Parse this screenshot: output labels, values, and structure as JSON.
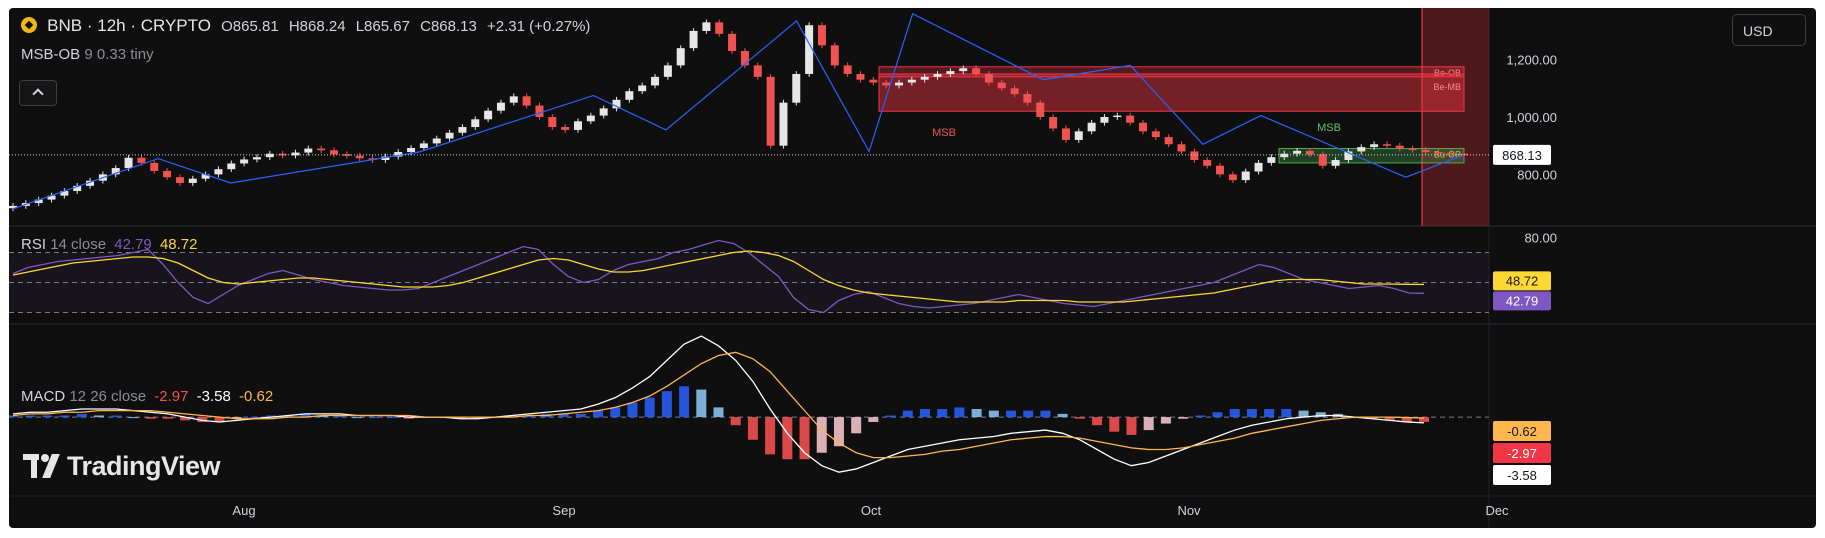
{
  "header": {
    "title": "BNB · 12h · CRYPTO",
    "ohlc": {
      "open": "O865.81",
      "high": "H868.24",
      "low": "L865.67",
      "close": "C868.13",
      "change": "+2.31 (+0.27%)"
    },
    "indicator_name": "MSB-OB",
    "indicator_params": "9 0.33 tiny"
  },
  "currency_button": "USD",
  "rsi_legend": {
    "name": "RSI",
    "params": "14 close",
    "v1": "42.79",
    "v2": "48.72"
  },
  "macd_legend": {
    "name": "MACD",
    "params": "12 26 close",
    "v1": "-2.97",
    "v2": "-3.58",
    "v3": "-0.62"
  },
  "watermark": "TradingView",
  "colors": {
    "background": "#0f0f0f",
    "up": "#e6e6e6",
    "down": "#ef5350",
    "zigzag": "#2962ff",
    "rsi": "#7e57c2",
    "rsi_ma": "#fdd835",
    "macd": "#ffffff",
    "signal": "#ffb74d",
    "bearish_ob": "#f23645",
    "bullish_ob": "#4caf50"
  },
  "chart_data": [
    {
      "type": "candlestick",
      "title": "BNB · 12h · CRYPTO",
      "x_ticks": [
        "Aug",
        "Sep",
        "Oct",
        "Nov",
        "Dec"
      ],
      "y_ticks": [
        "1,200.00",
        "1,000.00",
        "800.00"
      ],
      "ylim": [
        620,
        1380
      ],
      "last_price": 868.13,
      "last_price_label": "868.13",
      "close_series": [
        690,
        700,
        712,
        726,
        742,
        760,
        778,
        800,
        822,
        858,
        840,
        812,
        790,
        770,
        785,
        800,
        818,
        838,
        852,
        860,
        872,
        866,
        876,
        890,
        884,
        870,
        865,
        856,
        850,
        862,
        878,
        892,
        908,
        925,
        945,
        965,
        992,
        1022,
        1050,
        1072,
        1040,
        1000,
        965,
        955,
        985,
        1005,
        1030,
        1060,
        1090,
        1110,
        1140,
        1180,
        1240,
        1300,
        1330,
        1290,
        1230,
        1180,
        1140,
        900,
        1050,
        1150,
        1320,
        1250,
        1180,
        1150,
        1130,
        1120,
        1110,
        1120,
        1130,
        1140,
        1150,
        1160,
        1170,
        1150,
        1120,
        1100,
        1080,
        1050,
        1000,
        960,
        920,
        950,
        980,
        1000,
        1005,
        980,
        950,
        930,
        905,
        880,
        850,
        830,
        800,
        780,
        810,
        840,
        860,
        872,
        882,
        870,
        830,
        850,
        880,
        895,
        905,
        900,
        890,
        885,
        878,
        875,
        872,
        868
      ],
      "zigzag": [
        [
          0,
          680
        ],
        [
          10,
          855
        ],
        [
          15,
          770
        ],
        [
          28,
          878
        ],
        [
          40,
          1075
        ],
        [
          45,
          955
        ],
        [
          54,
          1335
        ],
        [
          59,
          880
        ],
        [
          62,
          1360
        ],
        [
          71,
          1130
        ],
        [
          77,
          1180
        ],
        [
          82,
          905
        ],
        [
          86,
          1005
        ],
        [
          96,
          790
        ],
        [
          100,
          868
        ]
      ],
      "zones": [
        {
          "label": "Be-OB",
          "top": 1175,
          "bottom": 1140
        },
        {
          "label": "Be-MB",
          "top": 1150,
          "bottom": 1020
        },
        {
          "label": "Bu-OB",
          "top": 890,
          "bottom": 840
        }
      ],
      "annotations": [
        "MSB",
        "MSB"
      ]
    },
    {
      "type": "line",
      "title": "RSI 14 close",
      "y_ticks": [
        "80.00"
      ],
      "ylim": [
        25,
        85
      ],
      "bands": [
        70,
        50,
        30
      ],
      "series": [
        {
          "name": "RSI",
          "last": 42.79,
          "values": [
            56,
            60,
            62,
            64,
            65,
            66,
            67,
            68,
            70,
            72,
            62,
            50,
            40,
            36,
            42,
            48,
            52,
            56,
            58,
            55,
            52,
            50,
            48,
            47,
            46,
            45,
            45,
            46,
            50,
            54,
            58,
            62,
            66,
            70,
            74,
            72,
            62,
            54,
            50,
            52,
            58,
            62,
            64,
            66,
            70,
            72,
            75,
            78,
            76,
            70,
            62,
            54,
            40,
            32,
            30,
            38,
            42,
            44,
            40,
            36,
            34,
            33,
            34,
            35,
            36,
            38,
            40,
            42,
            40,
            38,
            36,
            35,
            34,
            36,
            38,
            40,
            42,
            44,
            46,
            48,
            50,
            54,
            58,
            62,
            60,
            56,
            52,
            50,
            48,
            46,
            47,
            48,
            46,
            43,
            42.79
          ]
        },
        {
          "name": "RSI MA",
          "last": 48.72,
          "values": [
            55,
            57,
            59,
            61,
            63,
            64,
            65,
            66,
            67,
            67,
            66,
            63,
            58,
            53,
            50,
            49,
            50,
            51,
            52,
            53,
            53,
            52,
            51,
            50,
            49,
            48,
            47,
            47,
            47,
            48,
            50,
            53,
            56,
            59,
            62,
            65,
            66,
            65,
            62,
            59,
            57,
            57,
            58,
            60,
            62,
            64,
            66,
            68,
            70,
            71,
            70,
            68,
            64,
            58,
            52,
            48,
            45,
            43,
            42,
            41,
            40,
            39,
            38,
            37,
            37,
            37,
            37,
            38,
            38,
            38,
            38,
            37,
            37,
            37,
            37,
            38,
            39,
            40,
            41,
            42,
            43,
            45,
            47,
            49,
            51,
            52,
            52,
            52,
            51,
            50,
            49,
            49,
            48.9,
            48.8,
            48.72
          ]
        }
      ]
    },
    {
      "type": "line",
      "title": "MACD 12 26 close",
      "ylim": [
        -45,
        55
      ],
      "series": [
        {
          "name": "MACD",
          "last": -3.58,
          "values": [
            2,
            3,
            3,
            4,
            5,
            5,
            5,
            4,
            3,
            2,
            0,
            -2,
            -3,
            -2,
            -1,
            0,
            1,
            2,
            2,
            2,
            1,
            1,
            1,
            0,
            0,
            0,
            -1,
            -1,
            0,
            1,
            2,
            3,
            4,
            5,
            8,
            12,
            18,
            25,
            35,
            45,
            50,
            44,
            35,
            22,
            5,
            -10,
            -22,
            -30,
            -34,
            -32,
            -28,
            -24,
            -20,
            -18,
            -16,
            -14,
            -13,
            -12,
            -10,
            -9,
            -8,
            -10,
            -14,
            -20,
            -26,
            -30,
            -28,
            -24,
            -20,
            -16,
            -12,
            -8,
            -5,
            -3,
            -1,
            0,
            1,
            1,
            0,
            -1,
            -2,
            -3,
            -3.58
          ]
        },
        {
          "name": "Signal",
          "last": -0.62,
          "values": [
            1,
            2,
            2,
            3,
            3,
            4,
            4,
            4,
            4,
            3,
            2,
            1,
            0,
            -1,
            -1,
            -1,
            0,
            0,
            1,
            1,
            1,
            1,
            1,
            1,
            0,
            0,
            0,
            0,
            0,
            0,
            1,
            1,
            2,
            3,
            4,
            6,
            9,
            13,
            19,
            26,
            33,
            38,
            40,
            36,
            28,
            16,
            4,
            -8,
            -16,
            -22,
            -25,
            -25,
            -24,
            -23,
            -21,
            -20,
            -18,
            -16,
            -14,
            -13,
            -12,
            -12,
            -13,
            -15,
            -17,
            -19,
            -20,
            -20,
            -19,
            -17,
            -15,
            -13,
            -10,
            -8,
            -6,
            -4,
            -2,
            -1,
            0,
            0,
            0,
            -0.3,
            -0.62
          ]
        },
        {
          "name": "Histogram",
          "last": -2.97,
          "values": [
            1,
            1,
            1,
            1,
            2,
            1,
            1,
            0,
            -1,
            -1,
            -2,
            -3,
            -3,
            -1,
            0,
            1,
            1,
            2,
            1,
            1,
            0,
            0,
            0,
            -1,
            0,
            0,
            -1,
            -1,
            0,
            1,
            1,
            2,
            2,
            2,
            4,
            6,
            9,
            12,
            16,
            19,
            17,
            6,
            -5,
            -14,
            -23,
            -26,
            -26,
            -22,
            -18,
            -10,
            -3,
            1,
            4,
            5,
            5,
            6,
            5,
            4,
            4,
            4,
            4,
            2,
            -1,
            -5,
            -9,
            -11,
            -8,
            -4,
            -1,
            1,
            3,
            5,
            5,
            5,
            5,
            4,
            3,
            2,
            0,
            -1,
            -2,
            -2.7,
            -2.97
          ]
        }
      ]
    }
  ]
}
